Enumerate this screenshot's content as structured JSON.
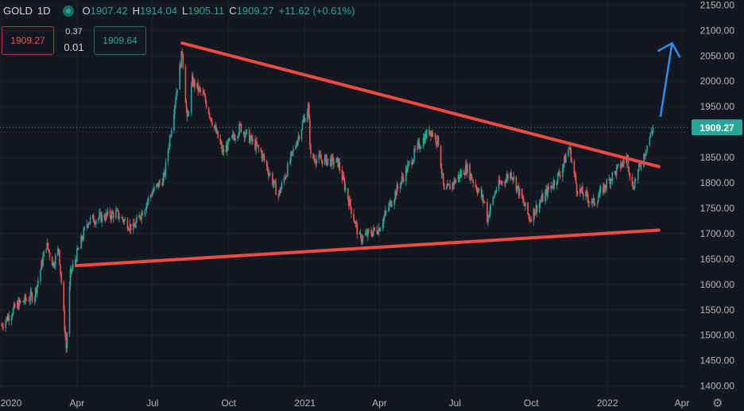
{
  "legend": {
    "symbol": "GOLD",
    "interval": "1D",
    "open_label": "O",
    "open": "1907.42",
    "high_label": "H",
    "high": "1914.04",
    "low_label": "L",
    "low": "1905.11",
    "close_label": "C",
    "close": "1909.27",
    "change": "+11.62 (+0.61%)"
  },
  "trade": {
    "sell": "1909.27",
    "spread_top": "0.37",
    "spread_bottom": "0.01",
    "buy": "1909.64"
  },
  "price_tag": "1909.27",
  "colors": {
    "background": "#131722",
    "up": "#26a69a",
    "down": "#ef5350",
    "trendline": "#f04a3f",
    "arrow": "#2f8fe6"
  },
  "icons": {
    "settings": "gear-icon"
  },
  "chart_data": {
    "type": "candlestick",
    "y_axis_ticks": [
      "1400.00",
      "1450.00",
      "1500.00",
      "1550.00",
      "1600.00",
      "1650.00",
      "1700.00",
      "1750.00",
      "1800.00",
      "1850.00",
      "1900.00",
      "1950.00",
      "2000.00",
      "2050.00",
      "2100.00",
      "2150.00"
    ],
    "x_axis_ticks": [
      "2020",
      "Apr",
      "Jul",
      "Oct",
      "2021",
      "Apr",
      "Jul",
      "Oct",
      "2022",
      "Apr"
    ],
    "ylim": [
      1390,
      2160
    ],
    "last_price": 1909.27,
    "price_path": [
      [
        "2020-01-01",
        1520
      ],
      [
        "2020-01-20",
        1560
      ],
      [
        "2020-02-10",
        1580
      ],
      [
        "2020-02-24",
        1680
      ],
      [
        "2020-03-03",
        1640
      ],
      [
        "2020-03-10",
        1670
      ],
      [
        "2020-03-19",
        1475
      ],
      [
        "2020-03-24",
        1620
      ],
      [
        "2020-04-14",
        1725
      ],
      [
        "2020-05-18",
        1740
      ],
      [
        "2020-06-08",
        1710
      ],
      [
        "2020-06-30",
        1780
      ],
      [
        "2020-07-15",
        1810
      ],
      [
        "2020-08-06",
        2060
      ],
      [
        "2020-08-12",
        1920
      ],
      [
        "2020-08-18",
        2000
      ],
      [
        "2020-09-01",
        1970
      ],
      [
        "2020-09-24",
        1860
      ],
      [
        "2020-10-15",
        1910
      ],
      [
        "2020-11-09",
        1860
      ],
      [
        "2020-11-30",
        1775
      ],
      [
        "2021-01-05",
        1950
      ],
      [
        "2021-01-08",
        1850
      ],
      [
        "2021-02-10",
        1840
      ],
      [
        "2021-03-08",
        1690
      ],
      [
        "2021-03-31",
        1710
      ],
      [
        "2021-04-20",
        1780
      ],
      [
        "2021-05-17",
        1870
      ],
      [
        "2021-06-01",
        1905
      ],
      [
        "2021-06-11",
        1880
      ],
      [
        "2021-06-18",
        1780
      ],
      [
        "2021-07-15",
        1830
      ],
      [
        "2021-08-06",
        1760
      ],
      [
        "2021-08-09",
        1730
      ],
      [
        "2021-08-20",
        1790
      ],
      [
        "2021-09-07",
        1820
      ],
      [
        "2021-09-29",
        1730
      ],
      [
        "2021-10-15",
        1770
      ],
      [
        "2021-11-05",
        1820
      ],
      [
        "2021-11-16",
        1870
      ],
      [
        "2021-11-25",
        1790
      ],
      [
        "2021-12-15",
        1760
      ],
      [
        "2022-01-05",
        1810
      ],
      [
        "2022-01-25",
        1850
      ],
      [
        "2022-01-31",
        1790
      ],
      [
        "2022-02-15",
        1860
      ],
      [
        "2022-02-25",
        1909
      ]
    ],
    "trendlines": {
      "upper": [
        [
          "2020-08-06",
          2075
        ],
        [
          "2022-03-04",
          1832
        ]
      ],
      "lower": [
        [
          "2020-03-31",
          1637
        ],
        [
          "2022-03-04",
          1707
        ]
      ]
    },
    "arrow": {
      "from": [
        "2022-03-06",
        1930
      ],
      "to": [
        "2022-03-20",
        2075
      ]
    }
  }
}
